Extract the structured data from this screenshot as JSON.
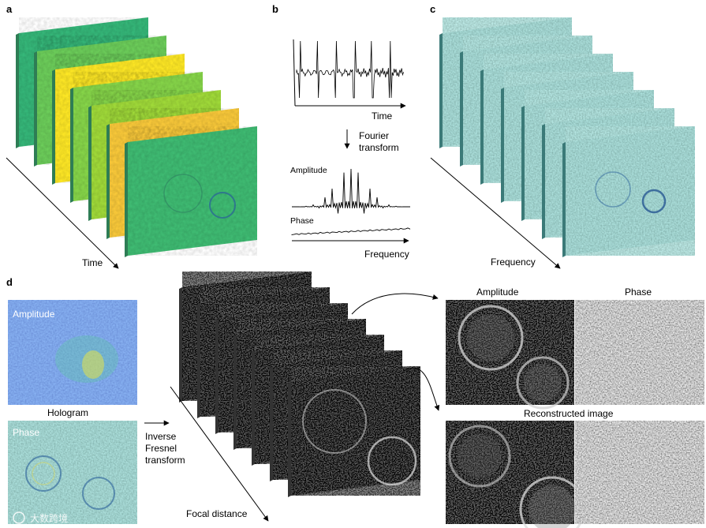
{
  "panels": {
    "a": {
      "letter": "a",
      "axis_label": "Time"
    },
    "b": {
      "letter": "b",
      "time_label": "Time",
      "fourier_line1": "Fourier",
      "fourier_line2": "transform",
      "amplitude_label": "Amplitude",
      "phase_label": "Phase",
      "frequency_label": "Frequency"
    },
    "c": {
      "letter": "c",
      "axis_label": "Frequency"
    },
    "d": {
      "letter": "d",
      "amplitude_label": "Amplitude",
      "hologram_label": "Hologram",
      "phase_label": "Phase",
      "inverse_line1": "Inverse",
      "inverse_line2": "Fresnel",
      "inverse_line3": "transform",
      "focal_label": "Focal distance",
      "out_amplitude_label": "Amplitude",
      "out_phase_label": "Phase",
      "reconstructed_label": "Reconstructed image"
    }
  },
  "watermark": {
    "text": "大数跨境"
  },
  "colors": {
    "a_frames": [
      "#35b779",
      "#6ccd5a",
      "#fde725",
      "#86d549",
      "#a0da39",
      "#f9c93a",
      "#3fbc73"
    ],
    "teal": "#5aa3a0",
    "hologram_blue": "#3c4fc9",
    "dark_frame": "#0a0a0a"
  }
}
